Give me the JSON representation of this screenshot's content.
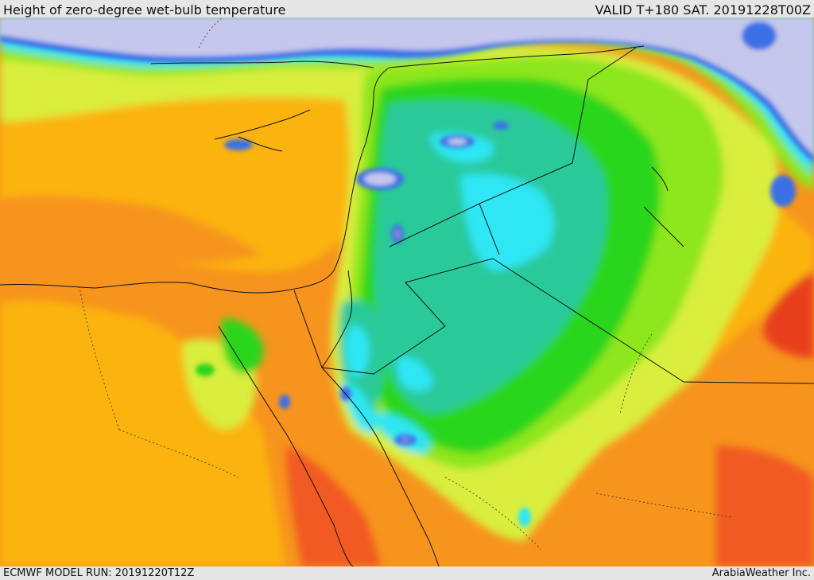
{
  "header": {
    "title": "Height of zero-degree wet-bulb temperature",
    "valid": "VALID T+180 SAT. 20191228T00Z"
  },
  "footer": {
    "model_run": "ECMWF MODEL RUN: 20191220T12Z",
    "credit": "ArabiaWeather Inc."
  },
  "colors": {
    "sea_lowlands_orange": "#f7941d",
    "warm_orange": "#fbb40f",
    "deep_orange_red": "#f15a22",
    "red": "#e8401c",
    "yellow_green": "#d9ee3c",
    "light_green": "#8ee61e",
    "green": "#2bd61e",
    "teal": "#2ac99a",
    "cyan": "#2de6f4",
    "blue": "#3b6fe6",
    "purple": "#8a8ad8",
    "lavender": "#c5c7ec",
    "border_line": "#111111"
  }
}
